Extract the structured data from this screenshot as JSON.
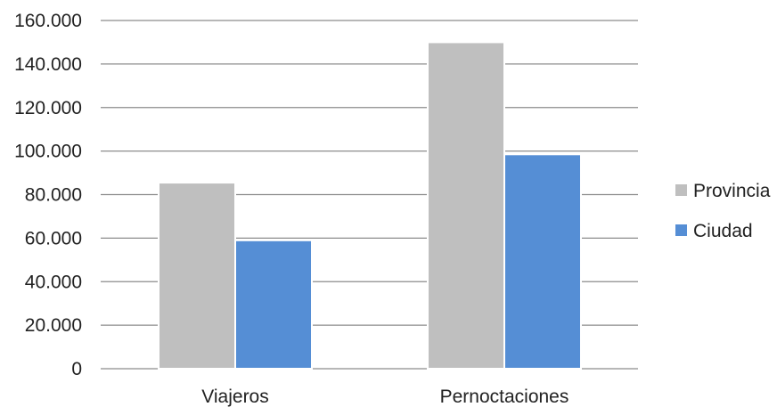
{
  "chart_data": {
    "type": "bar",
    "categories": [
      "Viajeros",
      "Pernoctaciones"
    ],
    "series": [
      {
        "name": "Provincia",
        "color": "#bfbfbf",
        "values": [
          85500,
          150000
        ]
      },
      {
        "name": "Ciudad",
        "color": "#558ed5",
        "values": [
          59000,
          98500
        ]
      }
    ],
    "ylim": [
      0,
      160000
    ],
    "yticks": [
      0,
      20000,
      40000,
      60000,
      80000,
      100000,
      120000,
      140000,
      160000
    ],
    "ytick_labels": [
      "0",
      "20.000",
      "40.000",
      "60.000",
      "80.000",
      "100.000",
      "120.000",
      "140.000",
      "160.000"
    ],
    "grid": true,
    "legend_position": "right",
    "title": "",
    "xlabel": "",
    "ylabel": ""
  }
}
